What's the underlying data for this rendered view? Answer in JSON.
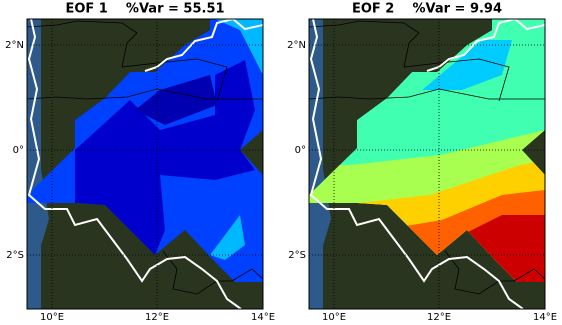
{
  "panels": [
    {
      "title": "EOF 1    %Var = 55.51",
      "yticks": [
        "2°N",
        "0°",
        "2°S"
      ],
      "xticks": [
        "10°E",
        "12°E",
        "14°E"
      ]
    },
    {
      "title": "EOF 2    %Var = 9.94",
      "yticks": [
        "2°N",
        "0°",
        "2°S"
      ],
      "xticks": [
        "10°E",
        "12°E",
        "14°E"
      ]
    }
  ]
}
